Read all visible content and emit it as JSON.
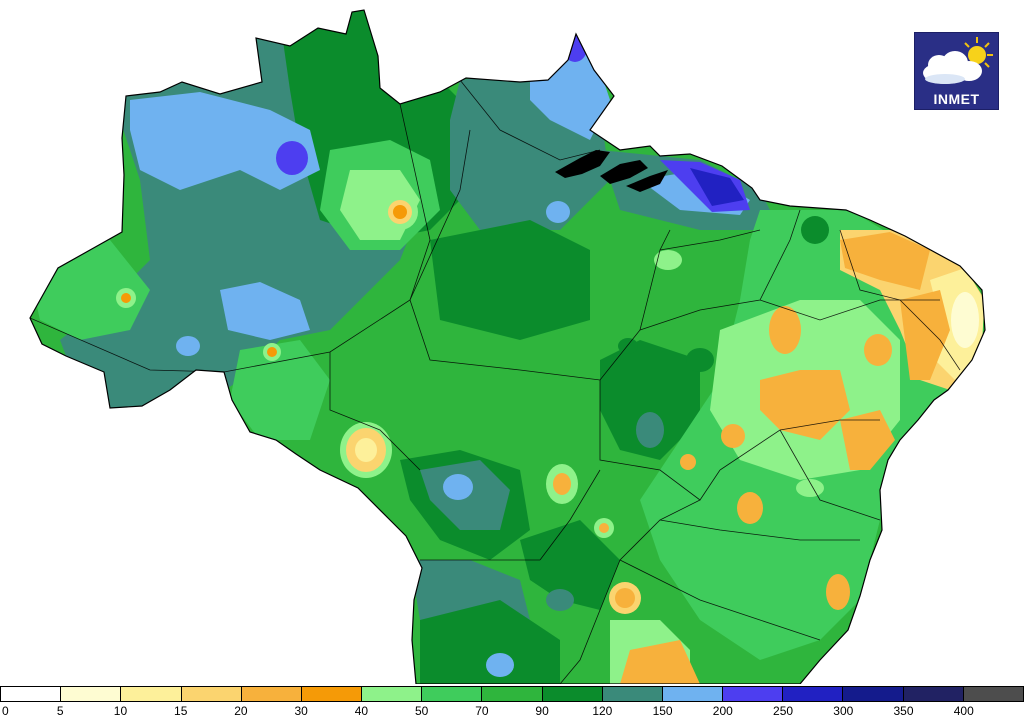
{
  "logo": {
    "text": "INMET"
  },
  "legend": {
    "colors": [
      "#ffffff",
      "#fefcd2",
      "#fdf09a",
      "#fbd46f",
      "#f7b13c",
      "#f59a07",
      "#8ef28a",
      "#3fcc5c",
      "#2fb53d",
      "#0b8c2c",
      "#3a8a7a",
      "#6fb2f0",
      "#4d3ef0",
      "#2121c2",
      "#141b8c",
      "#212263",
      "#4d4d4d"
    ],
    "labels": [
      "0",
      "5",
      "10",
      "15",
      "20",
      "30",
      "40",
      "50",
      "70",
      "90",
      "120",
      "150",
      "200",
      "250",
      "300",
      "350",
      "400"
    ]
  }
}
